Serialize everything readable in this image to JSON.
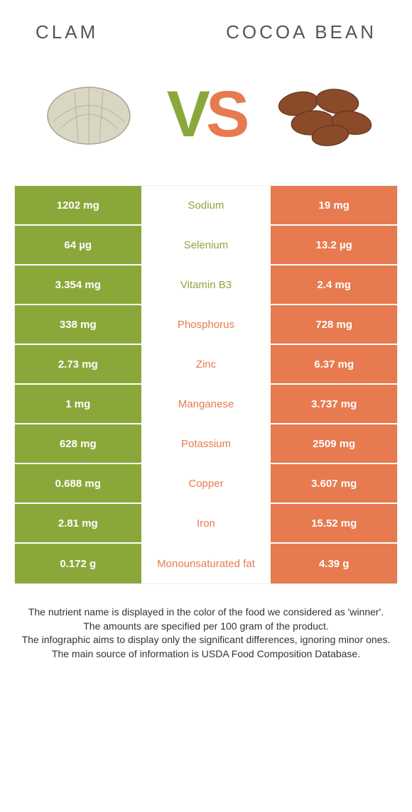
{
  "titles": {
    "left": "CLAM",
    "right": "COCOA BEAN"
  },
  "colors": {
    "left": "#8aa83a",
    "right": "#e77a4f",
    "text": "#333333",
    "bg": "#ffffff"
  },
  "rows": [
    {
      "left": "1202 mg",
      "name": "Sodium",
      "right": "19 mg",
      "winner": "left"
    },
    {
      "left": "64 µg",
      "name": "Selenium",
      "right": "13.2 µg",
      "winner": "left"
    },
    {
      "left": "3.354 mg",
      "name": "Vitamin B3",
      "right": "2.4 mg",
      "winner": "left"
    },
    {
      "left": "338 mg",
      "name": "Phosphorus",
      "right": "728 mg",
      "winner": "right"
    },
    {
      "left": "2.73 mg",
      "name": "Zinc",
      "right": "6.37 mg",
      "winner": "right"
    },
    {
      "left": "1 mg",
      "name": "Manganese",
      "right": "3.737 mg",
      "winner": "right"
    },
    {
      "left": "628 mg",
      "name": "Potassium",
      "right": "2509 mg",
      "winner": "right"
    },
    {
      "left": "0.688 mg",
      "name": "Copper",
      "right": "3.607 mg",
      "winner": "right"
    },
    {
      "left": "2.81 mg",
      "name": "Iron",
      "right": "15.52 mg",
      "winner": "right"
    },
    {
      "left": "0.172 g",
      "name": "Monounsaturated fat",
      "right": "4.39 g",
      "winner": "right"
    }
  ],
  "footer": [
    "The nutrient name is displayed in the color of the food we considered as 'winner'.",
    "The amounts are specified per 100 gram of the product.",
    "The infographic aims to display only the significant differences, ignoring minor ones.",
    "The main source of information is USDA Food Composition Database."
  ]
}
